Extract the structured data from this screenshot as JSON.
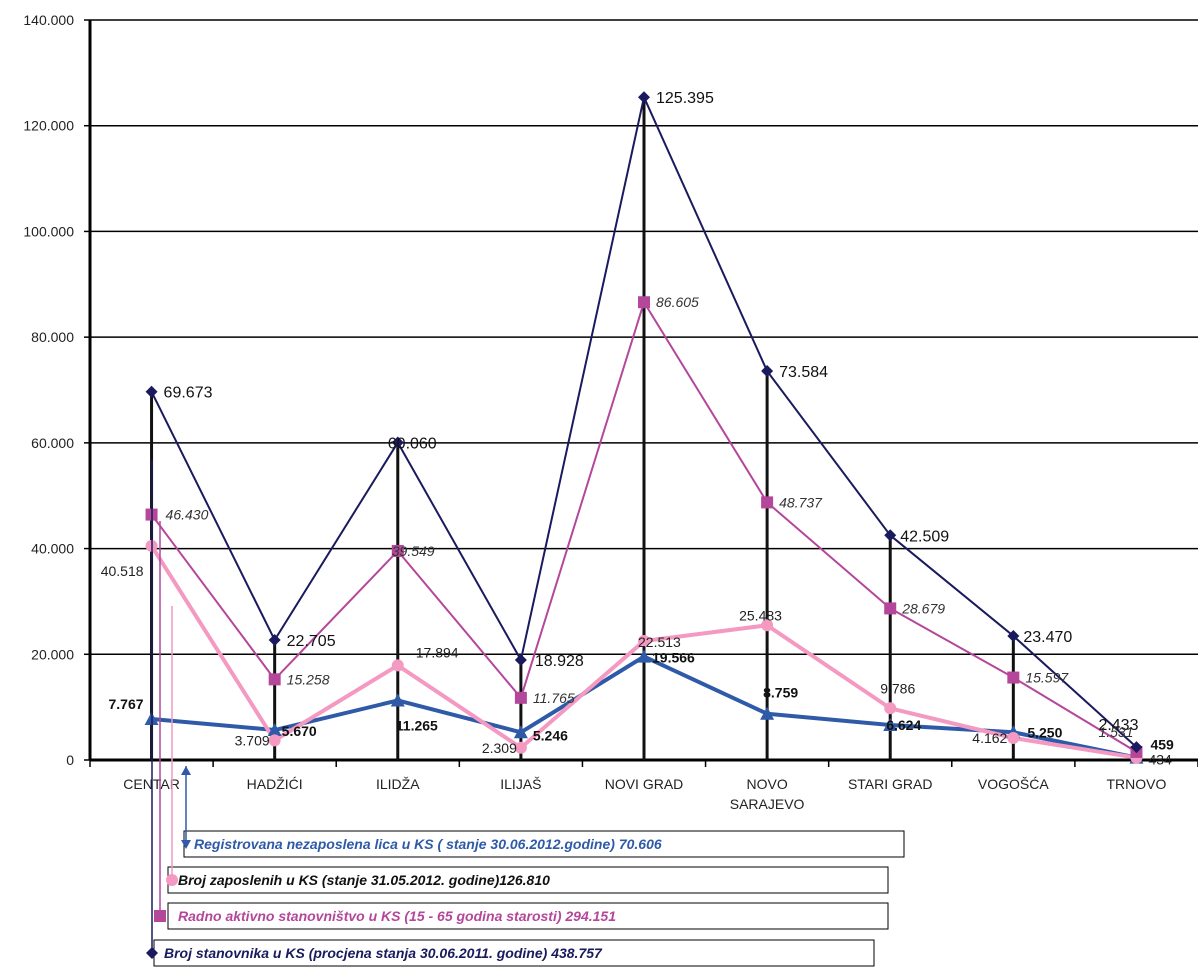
{
  "chart_data": {
    "type": "line",
    "categories": [
      "CENTAR",
      "HADŽIĆI",
      "ILIDŽA",
      "ILIJAŠ",
      "NOVI GRAD",
      [
        "NOVO",
        "SARAJEVO"
      ],
      "STARI GRAD",
      "VOGOŠĆA",
      "TRNOVO"
    ],
    "ylim": [
      0,
      140000
    ],
    "ytick_values": [
      0,
      20000,
      40000,
      60000,
      80000,
      100000,
      120000,
      140000
    ],
    "ytick_labels": [
      "0",
      "20.000",
      "40.000",
      "60.000",
      "80.000",
      "100.000",
      "120.000",
      "140.000"
    ],
    "grid": true,
    "series": [
      {
        "key": "population",
        "name": "Broj stanovnika u KS (procjena stanja 30.06.2011. godine) 438.757",
        "color": "#1a1a5e",
        "marker": "diamond",
        "values": [
          69673,
          22705,
          60060,
          18928,
          125395,
          73584,
          42509,
          23470,
          2433
        ],
        "labels": [
          "69.673",
          "22.705",
          "60.060",
          "18.928",
          "125.395",
          "73.584",
          "42.509",
          "23.470",
          "2.433"
        ]
      },
      {
        "key": "active",
        "name": "Radno aktivno stanovništvo u KS (15 - 65 godina starosti) 294.151",
        "color": "#b4479a",
        "marker": "square",
        "values": [
          46430,
          15258,
          39549,
          11765,
          86605,
          48737,
          28679,
          15597,
          1531
        ],
        "labels": [
          "46.430",
          "15.258",
          "39.549",
          "11.765",
          "86.605",
          "48.737",
          "28.679",
          "15.597",
          "1.531"
        ]
      },
      {
        "key": "employed",
        "name": "Broj zaposlenih u KS (stanje 31.05.2012. godine)126.810",
        "color": "#f49ac2",
        "marker": "circle",
        "values": [
          40518,
          3709,
          17894,
          2309,
          22513,
          25483,
          9786,
          4162,
          434
        ],
        "labels": [
          "40.518",
          "3.709",
          "17.894",
          "2.309",
          "22.513",
          "25.483",
          "9.786",
          "4.162",
          "434"
        ]
      },
      {
        "key": "unemployed",
        "name": "Registrovana nezaposlena lica u KS ( stanje 30.06.2012.godine) 70.606",
        "color": "#2e5aa8",
        "marker": "triangle",
        "values": [
          7767,
          5670,
          11265,
          5246,
          19566,
          8759,
          6624,
          5250,
          459
        ],
        "labels": [
          "7.767",
          "5.670",
          "11.265",
          "5.246",
          "19.566",
          "8.759",
          "6.624",
          "5.250",
          "459"
        ]
      }
    ]
  }
}
